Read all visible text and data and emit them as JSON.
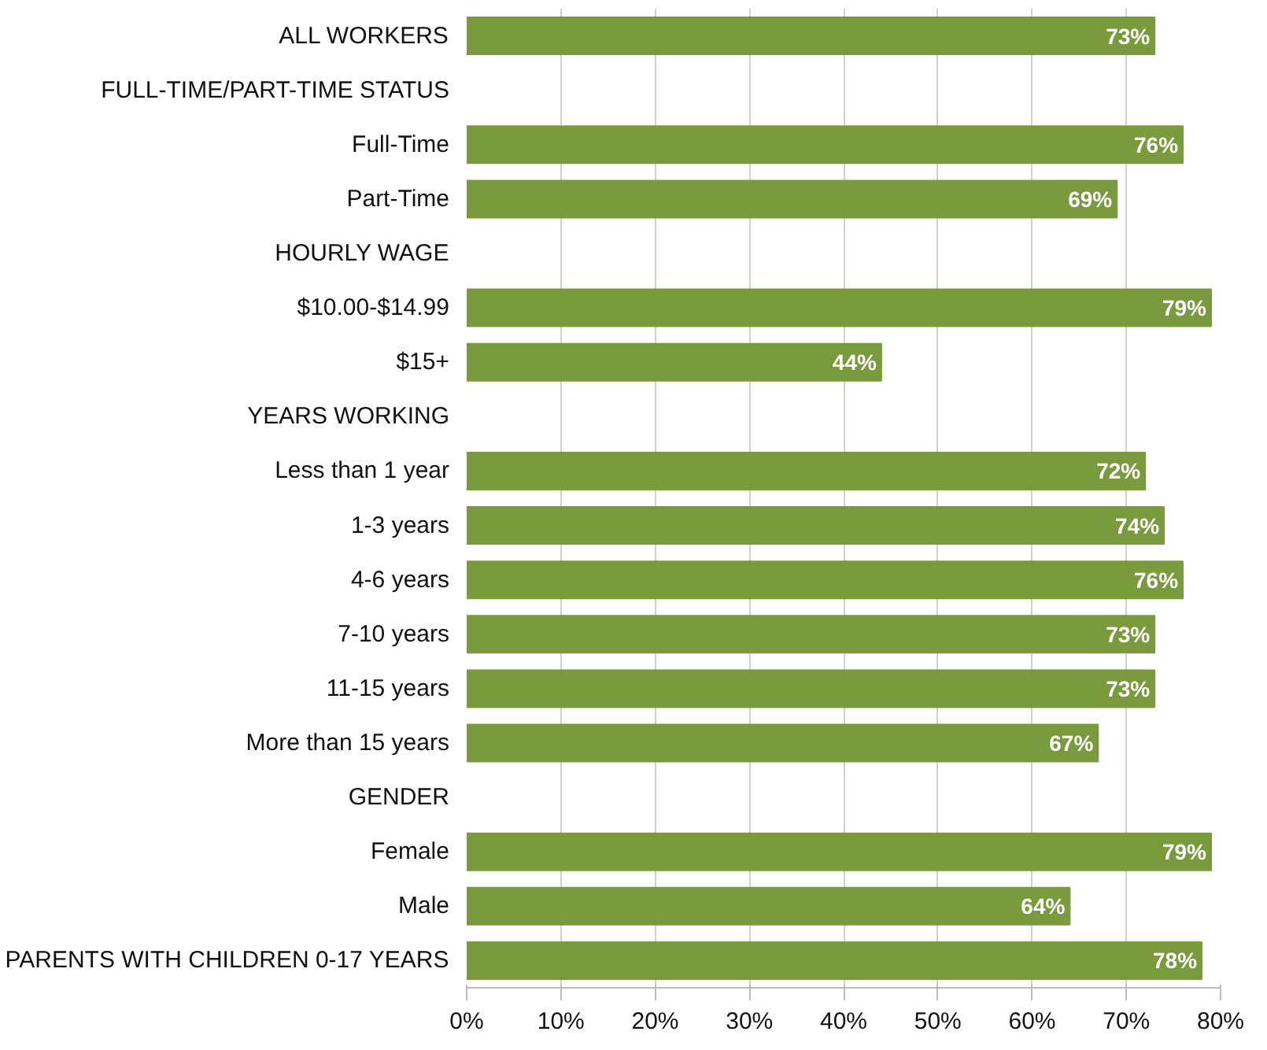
{
  "chart_data": {
    "type": "bar",
    "orientation": "horizontal",
    "categories": [
      "ALL WORKERS",
      "FULL-TIME/PART-TIME STATUS",
      "Full-Time",
      "Part-Time",
      "HOURLY WAGE",
      "$10.00-$14.99",
      "$15+",
      "YEARS WORKING",
      "Less than 1 year",
      "1-3 years",
      "4-6 years",
      "7-10 years",
      "11-15 years",
      "More than 15 years",
      "GENDER",
      "Female",
      "Male",
      "PARENTS WITH CHILDREN 0-17 YEARS"
    ],
    "values": [
      73,
      null,
      76,
      69,
      null,
      79,
      44,
      null,
      72,
      74,
      76,
      73,
      73,
      67,
      null,
      79,
      64,
      78
    ],
    "value_labels": [
      "73%",
      null,
      "76%",
      "69%",
      null,
      "79%",
      "44%",
      null,
      "72%",
      "74%",
      "76%",
      "73%",
      "73%",
      "67%",
      null,
      "79%",
      "64%",
      "78%"
    ],
    "color": "#7a9a3e",
    "xlim": [
      0,
      80
    ],
    "xticks": [
      {
        "value": 0,
        "label": "0%"
      },
      {
        "value": 10,
        "label": "10%"
      },
      {
        "value": 20,
        "label": "20%"
      },
      {
        "value": 30,
        "label": "30%"
      },
      {
        "value": 40,
        "label": "40%"
      },
      {
        "value": 50,
        "label": "50%"
      },
      {
        "value": 60,
        "label": "60%"
      },
      {
        "value": 70,
        "label": "70%"
      },
      {
        "value": 80,
        "label": "80%"
      }
    ],
    "grid": "x"
  }
}
